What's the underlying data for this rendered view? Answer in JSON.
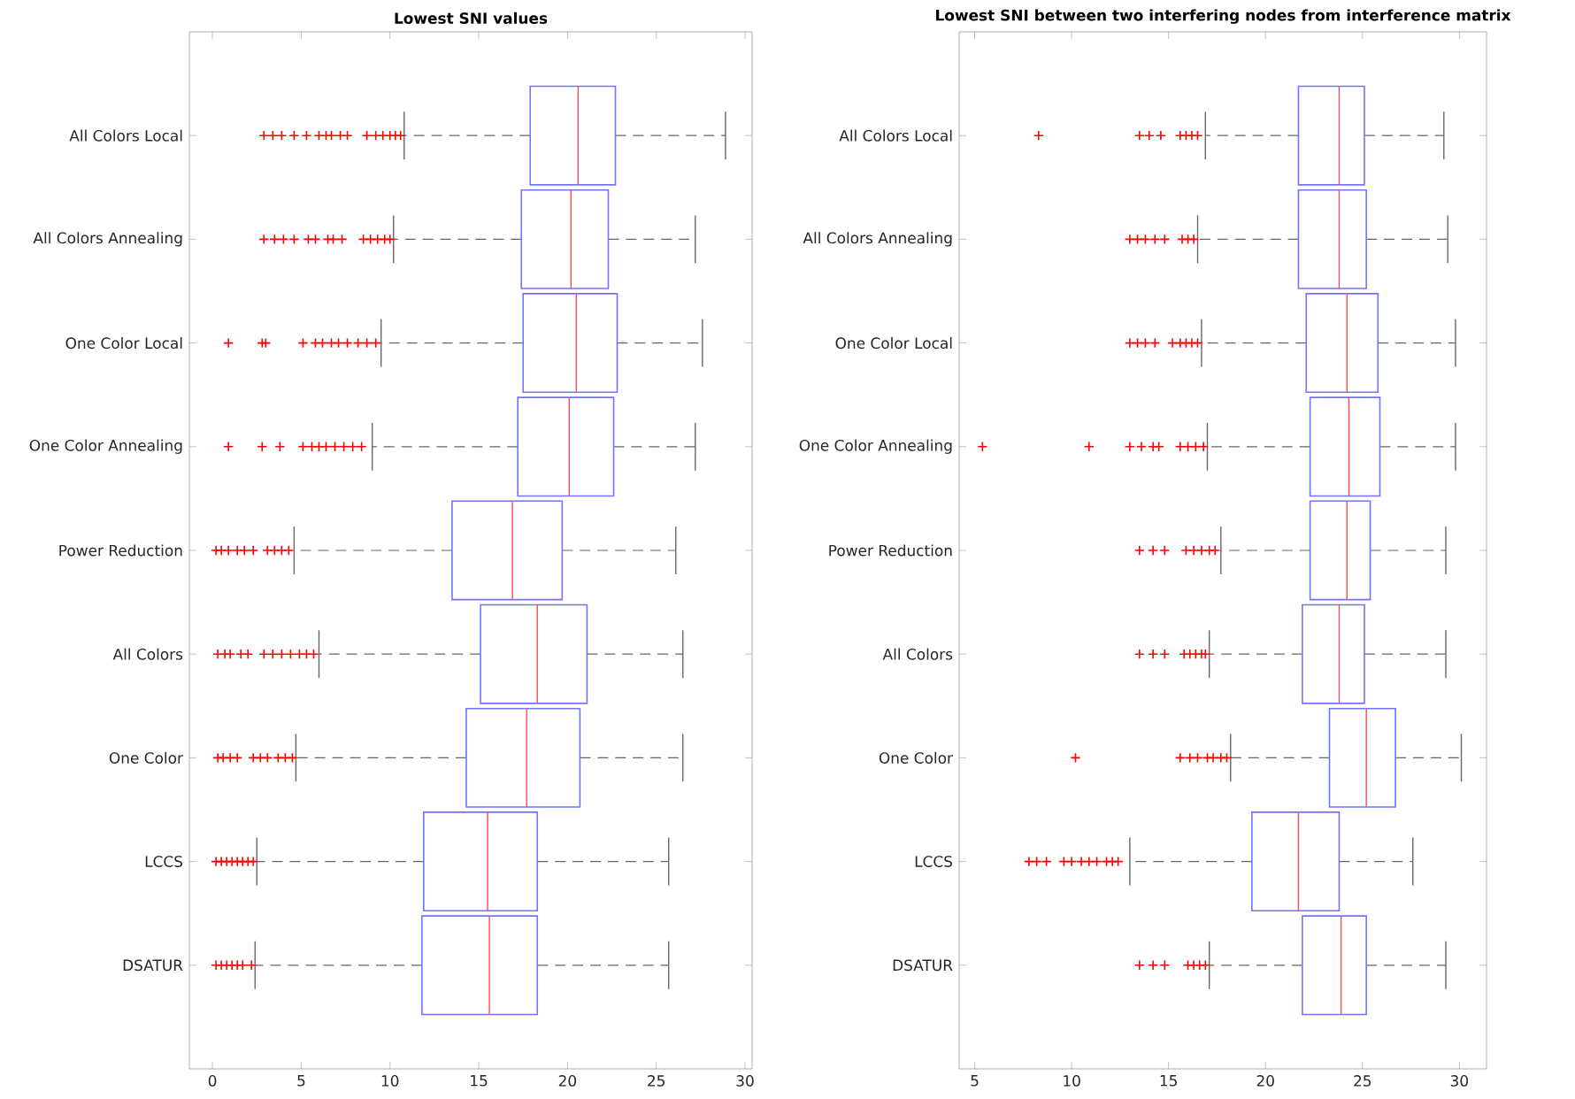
{
  "chart_data": [
    {
      "type": "box",
      "orientation": "horizontal",
      "title": "Lowest SNI values",
      "categories": [
        "All Colors Local",
        "All Colors Annealing",
        "One Color Local",
        "One Color Annealing",
        "Power Reduction",
        "All Colors",
        "One Color",
        "LCCS",
        "DSATUR"
      ],
      "xlim": [
        -1.3,
        30.4
      ],
      "xticks": [
        0,
        5,
        10,
        15,
        20,
        25,
        30
      ],
      "boxes": [
        {
          "low": 10.8,
          "q1": 17.9,
          "median": 20.6,
          "q3": 22.7,
          "high": 28.9,
          "outliers": [
            2.9,
            3.4,
            3.9,
            4.6,
            5.3,
            6.0,
            6.4,
            6.7,
            7.2,
            7.6,
            8.7,
            9.2,
            9.6,
            10.0,
            10.3,
            10.6
          ]
        },
        {
          "low": 10.2,
          "q1": 17.4,
          "median": 20.2,
          "q3": 22.3,
          "high": 27.2,
          "outliers": [
            2.9,
            3.5,
            4.0,
            4.6,
            5.4,
            5.8,
            6.5,
            6.8,
            7.3,
            8.5,
            8.9,
            9.3,
            9.7,
            10.0
          ]
        },
        {
          "low": 9.5,
          "q1": 17.5,
          "median": 20.5,
          "q3": 22.8,
          "high": 27.6,
          "outliers": [
            0.9,
            2.8,
            3.0,
            5.1,
            5.8,
            6.2,
            6.7,
            7.1,
            7.6,
            8.2,
            8.7,
            9.2
          ]
        },
        {
          "low": 9.0,
          "q1": 17.2,
          "median": 20.1,
          "q3": 22.6,
          "high": 27.2,
          "outliers": [
            0.9,
            2.8,
            3.8,
            5.1,
            5.6,
            6.0,
            6.4,
            6.9,
            7.4,
            7.9,
            8.4
          ]
        },
        {
          "low": 4.6,
          "q1": 13.5,
          "median": 16.9,
          "q3": 19.7,
          "high": 26.1,
          "outliers": [
            0.2,
            0.5,
            0.9,
            1.4,
            1.8,
            2.3,
            3.1,
            3.5,
            3.9,
            4.3
          ]
        },
        {
          "low": 6.0,
          "q1": 15.1,
          "median": 18.3,
          "q3": 21.1,
          "high": 26.5,
          "outliers": [
            0.3,
            0.7,
            1.0,
            1.6,
            2.0,
            2.9,
            3.4,
            3.9,
            4.4,
            4.9,
            5.3,
            5.7
          ]
        },
        {
          "low": 4.7,
          "q1": 14.3,
          "median": 17.7,
          "q3": 20.7,
          "high": 26.5,
          "outliers": [
            0.3,
            0.6,
            1.0,
            1.4,
            2.3,
            2.7,
            3.1,
            3.7,
            4.1,
            4.5
          ]
        },
        {
          "low": 2.5,
          "q1": 11.9,
          "median": 15.5,
          "q3": 18.3,
          "high": 25.7,
          "outliers": [
            0.2,
            0.5,
            0.8,
            1.1,
            1.4,
            1.7,
            2.0,
            2.3
          ]
        },
        {
          "low": 2.4,
          "q1": 11.8,
          "median": 15.6,
          "q3": 18.3,
          "high": 25.7,
          "outliers": [
            0.2,
            0.5,
            0.8,
            1.1,
            1.4,
            1.7,
            2.2
          ]
        }
      ]
    },
    {
      "type": "box",
      "orientation": "horizontal",
      "title": "Lowest SNI between two interfering nodes from interference matrix",
      "categories": [
        "All Colors Local",
        "All Colors Annealing",
        "One Color Local",
        "One Color Annealing",
        "Power Reduction",
        "All Colors",
        "One Color",
        "LCCS",
        "DSATUR"
      ],
      "xlim": [
        4.2,
        31.4
      ],
      "xticks": [
        5,
        10,
        15,
        20,
        25,
        30
      ],
      "boxes": [
        {
          "low": 16.9,
          "q1": 21.7,
          "median": 23.8,
          "q3": 25.1,
          "high": 29.2,
          "outliers": [
            8.3,
            13.5,
            14.0,
            14.6,
            15.6,
            15.9,
            16.2,
            16.5
          ]
        },
        {
          "low": 16.5,
          "q1": 21.7,
          "median": 23.8,
          "q3": 25.2,
          "high": 29.4,
          "outliers": [
            13.0,
            13.4,
            13.8,
            14.3,
            14.8,
            15.7,
            16.0,
            16.3
          ]
        },
        {
          "low": 16.7,
          "q1": 22.1,
          "median": 24.2,
          "q3": 25.8,
          "high": 29.8,
          "outliers": [
            13.0,
            13.4,
            13.8,
            14.3,
            15.2,
            15.6,
            15.9,
            16.2,
            16.5
          ]
        },
        {
          "low": 17.0,
          "q1": 22.3,
          "median": 24.3,
          "q3": 25.9,
          "high": 29.8,
          "outliers": [
            5.4,
            10.9,
            13.0,
            13.6,
            14.2,
            14.5,
            15.6,
            16.0,
            16.4,
            16.8
          ]
        },
        {
          "low": 17.7,
          "q1": 22.3,
          "median": 24.2,
          "q3": 25.4,
          "high": 29.3,
          "outliers": [
            13.5,
            14.2,
            14.8,
            15.9,
            16.3,
            16.7,
            17.1,
            17.4
          ]
        },
        {
          "low": 17.1,
          "q1": 21.9,
          "median": 23.8,
          "q3": 25.1,
          "high": 29.3,
          "outliers": [
            13.5,
            14.2,
            14.8,
            15.8,
            16.1,
            16.4,
            16.7,
            16.9
          ]
        },
        {
          "low": 18.2,
          "q1": 23.3,
          "median": 25.2,
          "q3": 26.7,
          "high": 30.1,
          "outliers": [
            10.2,
            15.6,
            16.1,
            16.5,
            17.0,
            17.3,
            17.7,
            18.0
          ]
        },
        {
          "low": 13.0,
          "q1": 19.3,
          "median": 21.7,
          "q3": 23.8,
          "high": 27.6,
          "outliers": [
            7.8,
            8.2,
            8.7,
            9.6,
            10.0,
            10.5,
            10.9,
            11.3,
            11.8,
            12.1,
            12.4
          ]
        },
        {
          "low": 17.1,
          "q1": 21.9,
          "median": 23.9,
          "q3": 25.2,
          "high": 29.3,
          "outliers": [
            13.5,
            14.2,
            14.8,
            16.0,
            16.3,
            16.6,
            16.9
          ]
        }
      ]
    }
  ]
}
